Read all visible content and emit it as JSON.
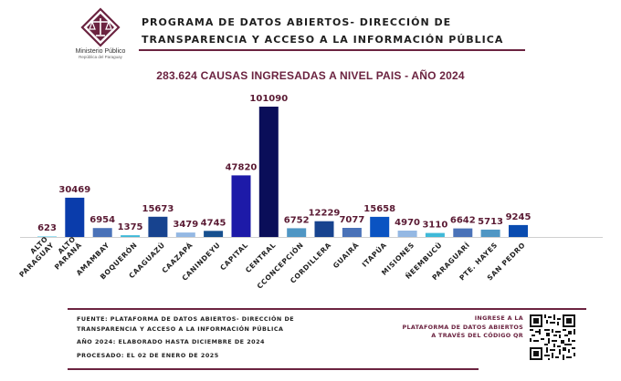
{
  "header": {
    "logo_name": "Ministerio Público",
    "logo_sub": "República del Paraguay",
    "title_line1": "PROGRAMA DE DATOS ABIERTOS- DIRECCIÓN DE",
    "title_line2": "TRANSPARENCIA Y ACCESO A LA INFORMACIÓN PÚBLICA"
  },
  "chart_data": {
    "type": "bar",
    "title": "283.624 CAUSAS INGRESADAS A NIVEL PAIS - AÑO 2024",
    "xlabel": "",
    "ylabel": "",
    "grid": false,
    "legend": "none",
    "categories": [
      [
        "ALTO",
        "PARAGUAY"
      ],
      [
        "ALTO",
        "PARANÁ"
      ],
      [
        "AMAMBAY"
      ],
      [
        "BOQUERÓN"
      ],
      [
        "CAAGUAZÚ"
      ],
      [
        "CAAZAPÁ"
      ],
      [
        "CANINDEYU"
      ],
      [
        "CAPITAL"
      ],
      [
        "CENTRAL"
      ],
      [
        "CCONCEPCIÓN"
      ],
      [
        "CORDILLERA"
      ],
      [
        "GUAIRÁ"
      ],
      [
        "ITAPÚA"
      ],
      [
        "MISIONES"
      ],
      [
        "ÑEEMBUCÚ"
      ],
      [
        "PARAGUARÍ"
      ],
      [
        "PTE. HAYES"
      ],
      [
        "SAN PEDRO"
      ]
    ],
    "values": [
      623,
      30469,
      6954,
      1375,
      15673,
      3479,
      4745,
      47820,
      101090,
      6752,
      12229,
      7077,
      15658,
      4970,
      3110,
      6642,
      5713,
      9245
    ],
    "data_labels": [
      "623",
      "30469",
      "6954",
      "1375",
      "15673",
      "3479",
      "4745",
      "47820",
      "101090",
      "6752",
      "12229",
      "7077",
      "15658",
      "4970",
      "3110",
      "6642",
      "5713",
      "9245"
    ],
    "colors": [
      "#92dcf2",
      "#0a3cab",
      "#4a72b8",
      "#3fb9d8",
      "#17438f",
      "#94b8e3",
      "#17508f",
      "#1d1aa8",
      "#0a0e59",
      "#4f96c4",
      "#17438f",
      "#4a72b8",
      "#0a53c2",
      "#94b8e3",
      "#3fb9d8",
      "#4a72b8",
      "#4f96c4",
      "#0a4cb0"
    ],
    "ylim": [
      0,
      101090
    ]
  },
  "footer": {
    "source_line1": "FUENTE: PLATAFORMA DE DATOS ABIERTOS- DIRECCIÓN DE",
    "source_line2": "TRANSPARENCIA Y ACCESO A LA INFORMACIÓN PÚBLICA",
    "elaborated": "AÑO 2024: ELABORADO HASTA DICIEMBRE DE 2024",
    "processed": "PROCESADO: EL 02 DE ENERO DE 2025",
    "qr_line1": "INGRESE A LA",
    "qr_line2": "PLATAFORMA DE DATOS ABIERTOS",
    "qr_line3": "A TRAVÉS DEL CÓDIGO QR"
  },
  "colors": {
    "accent": "#6b2340"
  }
}
